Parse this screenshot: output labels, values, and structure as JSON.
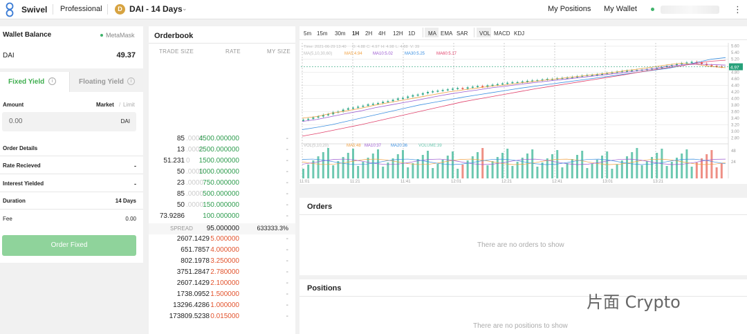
{
  "topbar": {
    "brand": "Swivel",
    "mode": "Professional",
    "market": "DAI - 14 Days",
    "token_icon": "D",
    "nav": [
      "My Positions",
      "My Wallet"
    ]
  },
  "wallet": {
    "title": "Wallet Balance",
    "provider": "MetaMask",
    "token": "DAI",
    "balance": "49.37"
  },
  "tabs": {
    "fixed": "Fixed Yield",
    "floating": "Floating Yield"
  },
  "order_form": {
    "amount_label": "Amount",
    "market_opt": "Market",
    "slash": "/",
    "limit_opt": "Limit",
    "amount_value": "0.00",
    "amount_unit": "DAI",
    "details_title": "Order Details",
    "details": [
      {
        "label": "Rate Recieved",
        "value": "-"
      },
      {
        "label": "Interest Yielded",
        "value": "-"
      },
      {
        "label": "Duration",
        "value": "14 Days"
      },
      {
        "label": "Fee",
        "value": "0.00"
      }
    ],
    "submit": "Order Fixed"
  },
  "orderbook": {
    "title": "Orderbook",
    "columns": [
      "TRADE SIZE",
      "RATE",
      "MY SIZE"
    ],
    "bids": [
      {
        "size": "85",
        "faded": ".0000",
        "rate": "4500.000000",
        "my": "-"
      },
      {
        "size": "13",
        "faded": ".0000",
        "rate": "2500.000000",
        "my": "-"
      },
      {
        "size": "51.231",
        "faded": "0",
        "rate": "1500.000000",
        "my": "-"
      },
      {
        "size": "50",
        "faded": ".0000",
        "rate": "1000.000000",
        "my": "-"
      },
      {
        "size": "23",
        "faded": ".0000",
        "rate": "750.000000",
        "my": "-"
      },
      {
        "size": "85",
        "faded": ".0000",
        "rate": "500.000000",
        "my": "-"
      },
      {
        "size": "50",
        "faded": ".0000",
        "rate": "150.000000",
        "my": "-"
      },
      {
        "size": "73.9286",
        "faded": "",
        "rate": "100.000000",
        "my": "-"
      }
    ],
    "spread_label": "SPREAD",
    "spread_value": "95.000000",
    "spread_pct": "633333.3%",
    "asks": [
      {
        "size": "2607.1429",
        "rate": "5.000000",
        "my": "-"
      },
      {
        "size": "651.7857",
        "rate": "4.000000",
        "my": "-"
      },
      {
        "size": "802.1978",
        "rate": "3.250000",
        "my": "-"
      },
      {
        "size": "3751.2847",
        "rate": "2.780000",
        "my": "-"
      },
      {
        "size": "2607.1429",
        "rate": "2.100000",
        "my": "-"
      },
      {
        "size": "1738.0952",
        "rate": "1.500000",
        "my": "-"
      },
      {
        "size": "13296.4286",
        "rate": "1.000000",
        "my": "-"
      },
      {
        "size": "173809.5238",
        "rate": "0.015000",
        "my": "-"
      }
    ]
  },
  "chart_toolbar": {
    "timeframes": [
      "5m",
      "15m",
      "30m",
      "1H",
      "2H",
      "4H",
      "12H",
      "1D"
    ],
    "main_indicators": [
      "MA",
      "EMA",
      "SAR"
    ],
    "sub_indicators": [
      "VOL",
      "MACD",
      "KDJ"
    ]
  },
  "chart_data": {
    "type": "candlestick",
    "info": {
      "time": "Time: 2021-06-29 13:40",
      "o": "O: 4.88",
      "c": "C: 4.97",
      "h": "H: 4.98",
      "l": "L: 4.88",
      "v": "V: 39"
    },
    "ma_legend": [
      "MA(5,10,30,60)",
      "MA5:4.94",
      "MA10:5.02",
      "MA30:5.25",
      "MA60:5.17"
    ],
    "vol_legend": [
      "VOL(5,10,20)",
      "MA5:48",
      "MA10:37",
      "MA20:36",
      "VOLUME:39"
    ],
    "price_ticks": [
      "5.60",
      "5.40",
      "5.20",
      "5.00",
      "4.80",
      "4.60",
      "4.40",
      "4.20",
      "4.00",
      "3.80",
      "3.60",
      "3.40",
      "3.20",
      "3.00",
      "2.80"
    ],
    "price_range": [
      2.7,
      5.7
    ],
    "vol_ticks": [
      "48",
      "24"
    ],
    "time_ticks": [
      "11:01",
      "11:21",
      "11:41",
      "12:01",
      "12:21",
      "12:41",
      "13:01",
      "13:21"
    ],
    "last_price": "4.97",
    "price_series": [
      3.35,
      3.38,
      3.42,
      3.45,
      3.5,
      3.52,
      3.58,
      3.6,
      3.66,
      3.7,
      3.72,
      3.75,
      3.78,
      3.82,
      3.84,
      3.86,
      3.9,
      3.92,
      3.96,
      4.0,
      4.02,
      4.06,
      4.1,
      4.12,
      4.16,
      4.2,
      4.22,
      4.24,
      4.26,
      4.28,
      4.3,
      4.32,
      4.3,
      4.34,
      4.36,
      4.38,
      4.36,
      4.4,
      4.42,
      4.44,
      4.46,
      4.48,
      4.5,
      4.5,
      4.52,
      4.54,
      4.55,
      4.56,
      4.58,
      4.6,
      4.6,
      4.62,
      4.63,
      4.64,
      4.66,
      4.68,
      4.7,
      4.72,
      4.72,
      4.74,
      4.76,
      4.78,
      4.8,
      4.82,
      4.84,
      4.85,
      4.86,
      4.87,
      4.88,
      4.9,
      4.92,
      4.94,
      4.96,
      5.0,
      5.02,
      5.05,
      5.08,
      5.1,
      5.12,
      5.1,
      5.06,
      5.02,
      5.0,
      4.98,
      4.97
    ],
    "ma5": [
      3.4,
      3.45,
      3.55,
      3.62,
      3.7,
      3.8,
      3.88,
      3.96,
      4.04,
      4.12,
      4.2,
      4.26,
      4.32,
      4.38,
      4.42,
      4.48,
      4.53,
      4.58,
      4.63,
      4.68,
      4.73,
      4.78,
      4.84,
      4.9,
      4.96,
      5.03,
      5.08,
      5.04,
      4.98,
      4.94
    ],
    "ma10": [
      3.3,
      3.36,
      3.45,
      3.54,
      3.62,
      3.72,
      3.8,
      3.88,
      3.96,
      4.05,
      4.13,
      4.2,
      4.26,
      4.33,
      4.38,
      4.44,
      4.49,
      4.54,
      4.59,
      4.64,
      4.69,
      4.74,
      4.79,
      4.85,
      4.91,
      4.98,
      5.03,
      5.05,
      5.04,
      5.02
    ],
    "ma30": [
      3.05,
      3.12,
      3.2,
      3.3,
      3.4,
      3.5,
      3.6,
      3.7,
      3.8,
      3.88,
      3.96,
      4.04,
      4.11,
      4.18,
      4.25,
      4.32,
      4.38,
      4.44,
      4.5,
      4.56,
      4.62,
      4.68,
      4.74,
      4.8,
      4.86,
      4.92,
      5.0,
      5.1,
      5.2,
      5.25
    ],
    "ma60": [
      2.85,
      2.93,
      3.02,
      3.11,
      3.2,
      3.3,
      3.4,
      3.5,
      3.6,
      3.7,
      3.8,
      3.9,
      3.98,
      4.06,
      4.14,
      4.22,
      4.3,
      4.37,
      4.44,
      4.51,
      4.58,
      4.65,
      4.72,
      4.8,
      4.87,
      4.94,
      5.0,
      5.08,
      5.14,
      5.17
    ],
    "colors": {
      "up": "#2fa88a",
      "down": "#e25a4b",
      "ma5": "#f0a040",
      "ma10": "#9b59d0",
      "ma30": "#3b8fe0",
      "ma60": "#e0406a",
      "last": "#27a17a"
    }
  },
  "orders": {
    "title": "Orders",
    "empty": "There are no orders to show"
  },
  "positions": {
    "title": "Positions",
    "empty": "There are no positions to show"
  },
  "watermark": "片面 Crypto"
}
